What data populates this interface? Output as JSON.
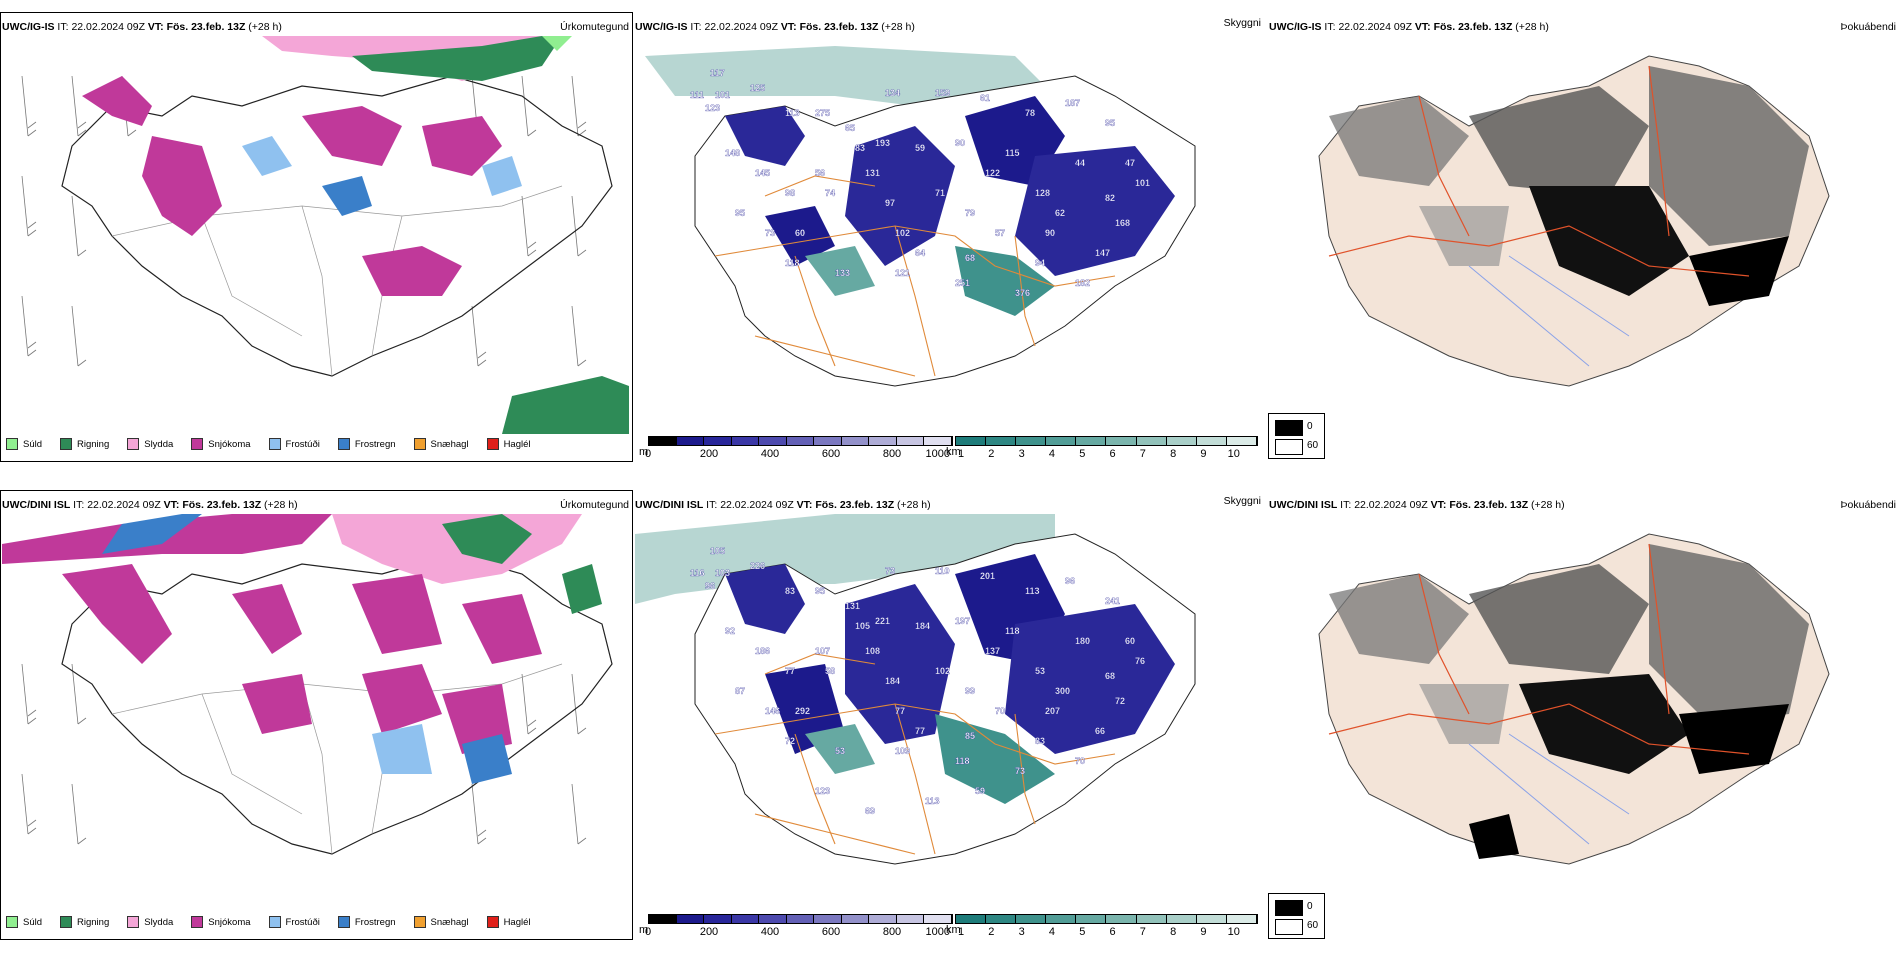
{
  "rows": [
    {
      "precip": {
        "model": "UWC/IG-IS",
        "it_label": "IT:",
        "it_value": "22.02.2024 09Z",
        "vt_label": "VT:",
        "vt_value": "Fös. 23.feb. 13Z",
        "lead": "(+28 h)",
        "title": "Úrkomutegund"
      },
      "vis": {
        "model": "UWC/IG-IS",
        "it_label": "IT:",
        "it_value": "22.02.2024 09Z",
        "vt_label": "VT:",
        "vt_value": "Fös. 23.feb. 13Z",
        "lead": "(+28 h)",
        "title": "Skyggni",
        "labels": [
          "117",
          "125",
          "111",
          "101",
          "123",
          "113",
          "275",
          "65",
          "134",
          "159",
          "61",
          "78",
          "187",
          "95",
          "193",
          "83",
          "59",
          "90",
          "115",
          "44",
          "47",
          "148",
          "56",
          "131",
          "122",
          "128",
          "82",
          "98",
          "74",
          "97",
          "79",
          "62",
          "101",
          "95",
          "73",
          "60",
          "102",
          "57",
          "90",
          "64",
          "68",
          "94",
          "147",
          "118",
          "251",
          "376",
          "71",
          "121",
          "133",
          "182",
          "168",
          "145"
        ]
      },
      "fog": {
        "model": "UWC/IG-IS",
        "it_label": "IT:",
        "it_value": "22.02.2024 09Z",
        "vt_label": "VT:",
        "vt_value": "Fös. 23.feb. 13Z",
        "lead": "(+28 h)",
        "title": "Þokuábendi"
      }
    },
    {
      "precip": {
        "model": "UWC/DINI ISL",
        "it_label": "IT:",
        "it_value": "22.02.2024 09Z",
        "vt_label": "VT:",
        "vt_value": "Fös. 23.feb. 13Z",
        "lead": "(+28 h)",
        "title": "Úrkomutegund"
      },
      "vis": {
        "model": "UWC/DINI ISL",
        "it_label": "IT:",
        "it_value": "22.02.2024 09Z",
        "vt_label": "VT:",
        "vt_value": "Fös. 23.feb. 13Z",
        "lead": "(+28 h)",
        "title": "Skyggni",
        "labels": [
          "105",
          "226",
          "116",
          "103",
          "96",
          "83",
          "95",
          "131",
          "73",
          "110",
          "201",
          "113",
          "96",
          "241",
          "221",
          "105",
          "184",
          "197",
          "118",
          "180",
          "60",
          "92",
          "107",
          "108",
          "137",
          "53",
          "68",
          "77",
          "58",
          "184",
          "99",
          "300",
          "76",
          "87",
          "146",
          "292",
          "77",
          "70",
          "207",
          "77",
          "85",
          "83",
          "66",
          "72",
          "118",
          "73",
          "102",
          "109",
          "53",
          "70",
          "72",
          "186",
          "59",
          "69",
          "123",
          "113"
        ]
      },
      "fog": {
        "model": "UWC/DINI ISL",
        "it_label": "IT:",
        "it_value": "22.02.2024 09Z",
        "vt_label": "VT:",
        "vt_value": "Fös. 23.feb. 13Z",
        "lead": "(+28 h)",
        "title": "Þokuábendi"
      }
    }
  ],
  "precip_legend": [
    {
      "label": "Súld",
      "color": "#90ee90"
    },
    {
      "label": "Rigning",
      "color": "#2e8b57"
    },
    {
      "label": "Slydda",
      "color": "#f4a6d7"
    },
    {
      "label": "Snjókoma",
      "color": "#c0399a"
    },
    {
      "label": "Frostúði",
      "color": "#8fc1ef"
    },
    {
      "label": "Frostregn",
      "color": "#3a7fc9"
    },
    {
      "label": "Snæhagl",
      "color": "#f0a030"
    },
    {
      "label": "Haglél",
      "color": "#e0201a"
    }
  ],
  "height_scale": {
    "unit": "m",
    "ticks": [
      "0",
      "200",
      "400",
      "600",
      "800",
      "1000"
    ],
    "colors": [
      "#000000",
      "#1c1a8c",
      "#28269a",
      "#3a37a6",
      "#4d4aae",
      "#6360b6",
      "#7b78c0",
      "#9391ca",
      "#aeacd6",
      "#c7c5e2",
      "#e0dff0"
    ]
  },
  "vis_scale": {
    "unit": "km",
    "ticks": [
      "1",
      "2",
      "3",
      "4",
      "5",
      "6",
      "7",
      "8",
      "9",
      "10"
    ],
    "colors": [
      "#1e7c7a",
      "#2e8783",
      "#3f928c",
      "#529d97",
      "#66a9a2",
      "#7bb5ad",
      "#92c2ba",
      "#a9cfc8",
      "#c2ddd7",
      "#dbebe7"
    ]
  },
  "fog_legend": {
    "low": "0",
    "high": "60",
    "low_color": "#000000",
    "high_color": "#ffffff"
  }
}
